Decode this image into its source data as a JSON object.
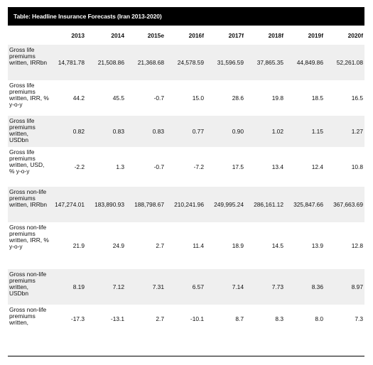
{
  "title": "Table: Headline Insurance Forecasts (Iran 2013-2020)",
  "columns": [
    "2013",
    "2014",
    "2015e",
    "2016f",
    "2017f",
    "2018f",
    "2019f",
    "2020f"
  ],
  "rows": [
    {
      "label": "Gross life premiums written, IRRbn",
      "values": [
        "14,781.78",
        "21,508.86",
        "21,368.68",
        "24,578.59",
        "31,596.59",
        "37,865.35",
        "44,849.86",
        "52,261.08"
      ]
    },
    {
      "label": "Gross life premiums written, IRR, % y-o-y",
      "values": [
        "44.2",
        "45.5",
        "-0.7",
        "15.0",
        "28.6",
        "19.8",
        "18.5",
        "16.5"
      ]
    },
    {
      "label": "Gross life premiums written, USDbn",
      "values": [
        "0.82",
        "0.83",
        "0.83",
        "0.77",
        "0.90",
        "1.02",
        "1.15",
        "1.27"
      ]
    },
    {
      "label": "Gross life premiums written, USD, % y-o-y",
      "values": [
        "-2.2",
        "1.3",
        "-0.7",
        "-7.2",
        "17.5",
        "13.4",
        "12.4",
        "10.8"
      ]
    },
    {
      "label": "Gross non-life premiums written, IRRbn",
      "values": [
        "147,274.01",
        "183,890.93",
        "188,798.67",
        "210,241.96",
        "249,995.24",
        "286,161.12",
        "325,847.66",
        "367,663.69"
      ]
    },
    {
      "label": "Gross non-life premiums written, IRR, % y-o-y",
      "values": [
        "21.9",
        "24.9",
        "2.7",
        "11.4",
        "18.9",
        "14.5",
        "13.9",
        "12.8"
      ]
    },
    {
      "label": "Gross non-life premiums written, USDbn",
      "values": [
        "8.19",
        "7.12",
        "7.31",
        "6.57",
        "7.14",
        "7.73",
        "8.36",
        "8.97"
      ]
    },
    {
      "label": "Gross non-life premiums written,",
      "values": [
        "-17.3",
        "-13.1",
        "2.7",
        "-10.1",
        "8.7",
        "8.3",
        "8.0",
        "7.3"
      ]
    }
  ]
}
